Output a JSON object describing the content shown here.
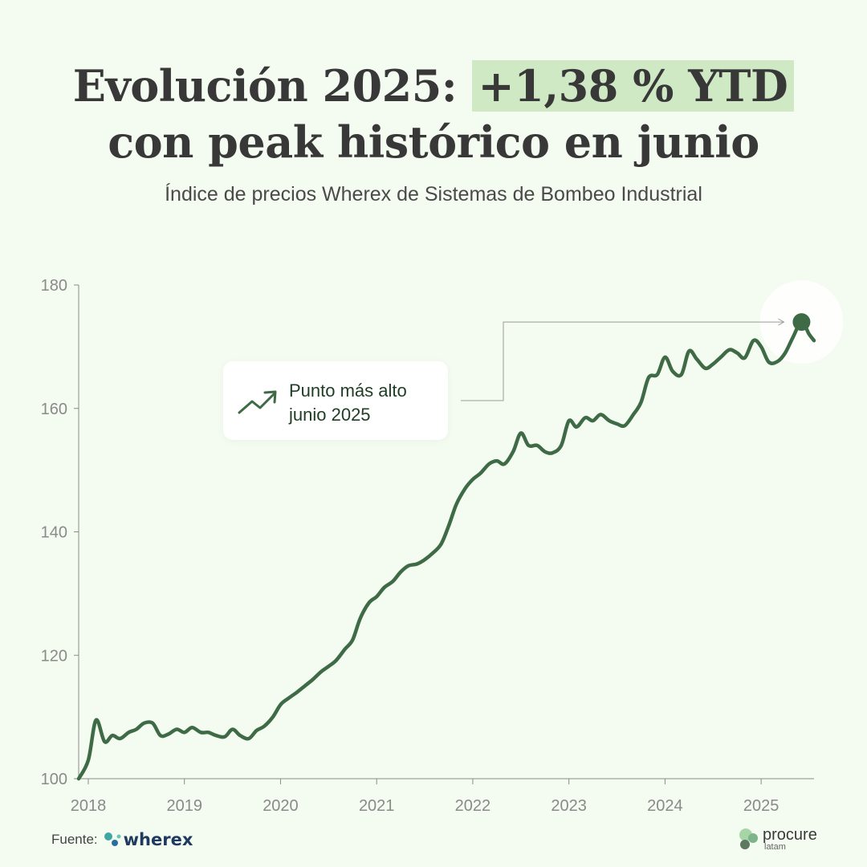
{
  "title": {
    "line1_prefix": "Evolución 2025: ",
    "line1_highlight": "+1,38 % YTD",
    "line2": "con peak histórico en junio"
  },
  "subtitle": "Índice de precios Wherex de Sistemas de Bombeo Industrial",
  "callout": {
    "line1": "Punto más alto",
    "line2": "junio 2025",
    "icon": "trending-up-icon"
  },
  "footer": {
    "source_label": "Fuente:",
    "source_brand": "wherex",
    "partner_brand": "procure",
    "partner_sub": "latam"
  },
  "colors": {
    "background": "#f4fbf0",
    "line": "#3e6b45",
    "highlight": "#cfe9c5",
    "axis": "#8a8a8a"
  },
  "chart_data": {
    "type": "line",
    "title": "",
    "xlabel": "",
    "ylabel": "",
    "ylim": [
      100,
      180
    ],
    "yticks": [
      100,
      120,
      140,
      160,
      180
    ],
    "xlim": [
      2017.9,
      2025.55
    ],
    "xticks": [
      2018,
      2019,
      2020,
      2021,
      2022,
      2023,
      2024,
      2025
    ],
    "grid": false,
    "peak": {
      "x": 2025.42,
      "y": 174
    },
    "series": [
      {
        "points": [
          [
            2017.9,
            100
          ],
          [
            2018.0,
            103
          ],
          [
            2018.08,
            109.5
          ],
          [
            2018.17,
            106
          ],
          [
            2018.25,
            107
          ],
          [
            2018.33,
            106.5
          ],
          [
            2018.42,
            107.5
          ],
          [
            2018.5,
            108
          ],
          [
            2018.58,
            109
          ],
          [
            2018.67,
            109
          ],
          [
            2018.75,
            107
          ],
          [
            2018.83,
            107.2
          ],
          [
            2018.92,
            108
          ],
          [
            2019.0,
            107.5
          ],
          [
            2019.08,
            108.3
          ],
          [
            2019.17,
            107.5
          ],
          [
            2019.25,
            107.5
          ],
          [
            2019.33,
            107
          ],
          [
            2019.42,
            106.8
          ],
          [
            2019.5,
            108
          ],
          [
            2019.58,
            107
          ],
          [
            2019.67,
            106.5
          ],
          [
            2019.75,
            107.8
          ],
          [
            2019.83,
            108.5
          ],
          [
            2019.92,
            110
          ],
          [
            2020.0,
            112
          ],
          [
            2020.08,
            113
          ],
          [
            2020.17,
            114
          ],
          [
            2020.25,
            115
          ],
          [
            2020.33,
            116
          ],
          [
            2020.42,
            117.3
          ],
          [
            2020.5,
            118.2
          ],
          [
            2020.58,
            119.2
          ],
          [
            2020.67,
            121
          ],
          [
            2020.75,
            122.5
          ],
          [
            2020.83,
            126
          ],
          [
            2020.92,
            128.5
          ],
          [
            2021.0,
            129.5
          ],
          [
            2021.08,
            131
          ],
          [
            2021.17,
            132
          ],
          [
            2021.25,
            133.5
          ],
          [
            2021.33,
            134.5
          ],
          [
            2021.42,
            134.8
          ],
          [
            2021.5,
            135.5
          ],
          [
            2021.58,
            136.5
          ],
          [
            2021.67,
            138
          ],
          [
            2021.75,
            141
          ],
          [
            2021.83,
            144.5
          ],
          [
            2021.92,
            147
          ],
          [
            2022.0,
            148.5
          ],
          [
            2022.08,
            149.5
          ],
          [
            2022.17,
            151
          ],
          [
            2022.25,
            151.5
          ],
          [
            2022.33,
            151
          ],
          [
            2022.42,
            153
          ],
          [
            2022.5,
            156
          ],
          [
            2022.58,
            154
          ],
          [
            2022.67,
            154
          ],
          [
            2022.75,
            153
          ],
          [
            2022.83,
            152.8
          ],
          [
            2022.92,
            154
          ],
          [
            2023.0,
            158
          ],
          [
            2023.08,
            157
          ],
          [
            2023.17,
            158.5
          ],
          [
            2023.25,
            158
          ],
          [
            2023.33,
            159
          ],
          [
            2023.42,
            158
          ],
          [
            2023.5,
            157.5
          ],
          [
            2023.58,
            157.2
          ],
          [
            2023.67,
            159
          ],
          [
            2023.75,
            161
          ],
          [
            2023.83,
            165
          ],
          [
            2023.92,
            165.5
          ],
          [
            2024.0,
            168.3
          ],
          [
            2024.08,
            166
          ],
          [
            2024.17,
            165.5
          ],
          [
            2024.25,
            169.3
          ],
          [
            2024.33,
            168
          ],
          [
            2024.42,
            166.5
          ],
          [
            2024.5,
            167.2
          ],
          [
            2024.58,
            168.3
          ],
          [
            2024.67,
            169.5
          ],
          [
            2024.75,
            169
          ],
          [
            2024.83,
            168.2
          ],
          [
            2024.92,
            171
          ],
          [
            2025.0,
            170
          ],
          [
            2025.08,
            167.5
          ],
          [
            2025.17,
            167.6
          ],
          [
            2025.25,
            169
          ],
          [
            2025.33,
            171.5
          ],
          [
            2025.42,
            174
          ],
          [
            2025.5,
            172
          ],
          [
            2025.55,
            171
          ]
        ]
      }
    ]
  }
}
